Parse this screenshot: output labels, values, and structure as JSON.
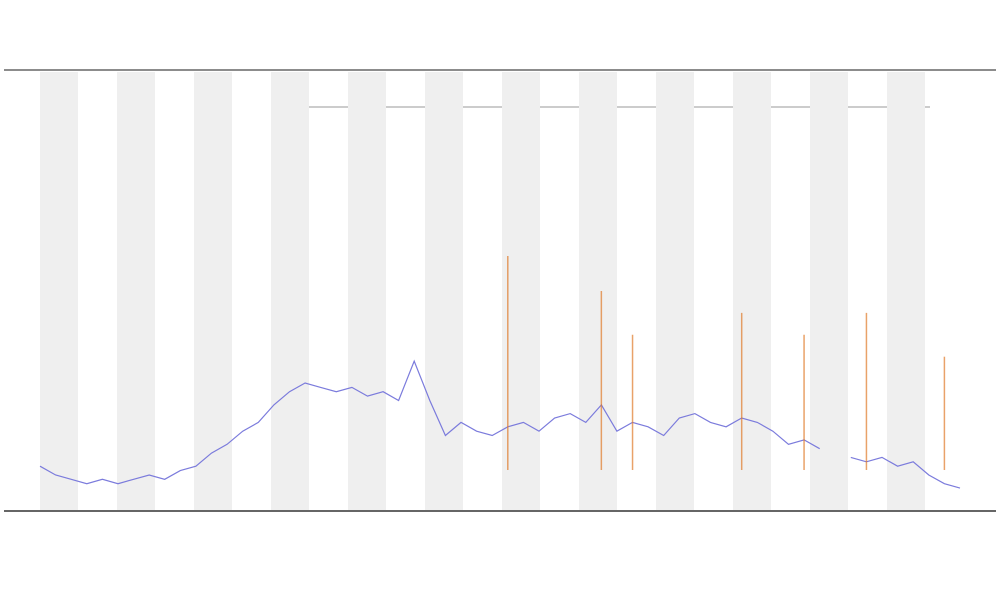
{
  "chart_data": {
    "type": "line",
    "categories": [
      null,
      null,
      null,
      null,
      null,
      null,
      null,
      null,
      null,
      null,
      null,
      null,
      null,
      null,
      null,
      null,
      null,
      null,
      null,
      null,
      null,
      null,
      null,
      null,
      null,
      null,
      null,
      null,
      null,
      null,
      null,
      null,
      null,
      null,
      null,
      null,
      null,
      null,
      null,
      null,
      null,
      null,
      null,
      null,
      null,
      null,
      null,
      null,
      null,
      null,
      null,
      null,
      null,
      null,
      null,
      null,
      null,
      null,
      null,
      null
    ],
    "series": [
      {
        "color": "#7b7bdc",
        "values": [
          10,
          8,
          7,
          6,
          7,
          6,
          7,
          8,
          7,
          9,
          10,
          13,
          15,
          18,
          20,
          24,
          27,
          29,
          28,
          27,
          28,
          26,
          27,
          25,
          34,
          25,
          17,
          20,
          18,
          17,
          19,
          20,
          18,
          21,
          22,
          20,
          24,
          18,
          20,
          19,
          17,
          21,
          22,
          20,
          19,
          21,
          20,
          18,
          15,
          16,
          14,
          null,
          12,
          11,
          12,
          10,
          11,
          8,
          6,
          5
        ]
      },
      {
        "color": "#e07b2a",
        "values": [
          null,
          null,
          null,
          null,
          null,
          null,
          null,
          null,
          null,
          null,
          null,
          null,
          null,
          null,
          null,
          null,
          null,
          null,
          null,
          null,
          null,
          null,
          null,
          null,
          null,
          null,
          null,
          null,
          null,
          null,
          58,
          null,
          null,
          null,
          null,
          null,
          50,
          null,
          40,
          null,
          null,
          null,
          null,
          null,
          null,
          45,
          null,
          null,
          null,
          40,
          null,
          null,
          null,
          45,
          null,
          null,
          null,
          null,
          35,
          null
        ]
      }
    ],
    "ylim": [
      0,
      100
    ]
  }
}
